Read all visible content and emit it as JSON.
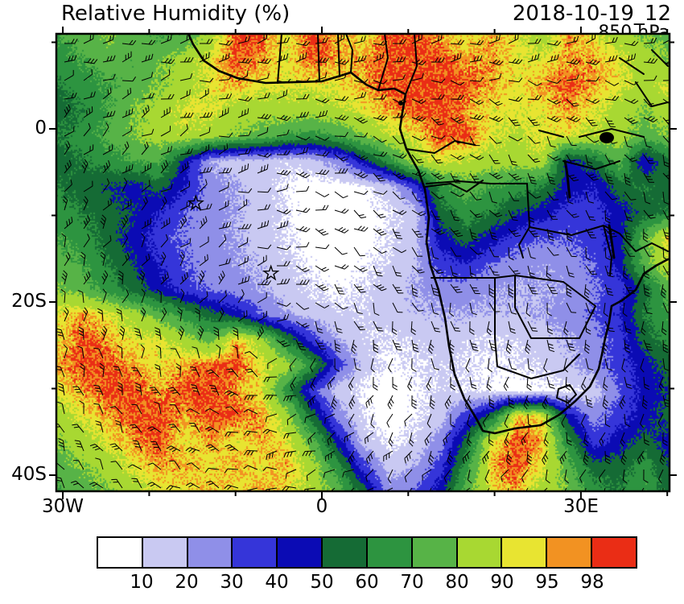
{
  "header": {
    "title": "Relative Humidity (%)",
    "datetime": "2018-10-19_12",
    "level": "850 hPa"
  },
  "axes": {
    "y_ticks": [
      {
        "label": "0",
        "lat": 0
      },
      {
        "label": "20S",
        "lat": -20
      },
      {
        "label": "40S",
        "lat": -40
      }
    ],
    "x_ticks": [
      {
        "label": "30W",
        "lon": -30
      },
      {
        "label": "0",
        "lon": 0
      },
      {
        "label": "30E",
        "lon": 30
      }
    ],
    "x_minor_lons": [
      -20,
      -10,
      10,
      20,
      40
    ],
    "y_minor_lats": [
      10,
      -10,
      -30
    ]
  },
  "colorbar": {
    "levels": [
      "10",
      "20",
      "30",
      "40",
      "50",
      "60",
      "70",
      "80",
      "90",
      "95",
      "98"
    ]
  },
  "chart_data": {
    "type": "heatmap",
    "title": "Relative Humidity (%)",
    "datetime": "2018-10-19_12",
    "pressure_level": "850 hPa",
    "units": "%",
    "lon_range": [
      -31,
      40
    ],
    "lat_range": [
      -42,
      11
    ],
    "levels": [
      10,
      20,
      30,
      40,
      50,
      60,
      70,
      80,
      90,
      95,
      98
    ],
    "palette": [
      "#ffffff",
      "#c9c9f2",
      "#8f8fe8",
      "#3535d9",
      "#0b0bb4",
      "#156b35",
      "#2d9440",
      "#57b347",
      "#a8d832",
      "#e8e431",
      "#f29222",
      "#ea2d15"
    ],
    "grid": {
      "ncols": 25,
      "nrows": 19,
      "values": [
        [
          70,
          75,
          80,
          75,
          70,
          72,
          85,
          99,
          99,
          92,
          99,
          96,
          92,
          99,
          99,
          96,
          92,
          96,
          92,
          85,
          96,
          92,
          85,
          80,
          75
        ],
        [
          65,
          70,
          75,
          72,
          78,
          85,
          92,
          99,
          96,
          92,
          99,
          96,
          96,
          99,
          99,
          99,
          96,
          96,
          92,
          92,
          96,
          96,
          92,
          85,
          80
        ],
        [
          60,
          65,
          70,
          75,
          80,
          85,
          92,
          96,
          92,
          92,
          92,
          92,
          96,
          99,
          99,
          99,
          99,
          96,
          92,
          96,
          99,
          96,
          92,
          85,
          92
        ],
        [
          55,
          60,
          70,
          80,
          85,
          92,
          92,
          85,
          85,
          85,
          85,
          88,
          92,
          96,
          99,
          99,
          96,
          92,
          92,
          92,
          96,
          92,
          85,
          80,
          85
        ],
        [
          60,
          65,
          72,
          80,
          85,
          88,
          85,
          80,
          75,
          70,
          65,
          70,
          80,
          88,
          92,
          99,
          99,
          92,
          88,
          92,
          92,
          88,
          85,
          75,
          80
        ],
        [
          55,
          60,
          65,
          70,
          72,
          45,
          20,
          15,
          15,
          12,
          15,
          25,
          45,
          65,
          85,
          92,
          88,
          85,
          85,
          88,
          45,
          55,
          75,
          40,
          60
        ],
        [
          60,
          55,
          50,
          45,
          55,
          40,
          25,
          20,
          15,
          8,
          5,
          5,
          8,
          15,
          35,
          65,
          75,
          70,
          65,
          60,
          45,
          40,
          55,
          60,
          55
        ],
        [
          65,
          60,
          55,
          50,
          40,
          30,
          25,
          20,
          15,
          10,
          5,
          5,
          5,
          10,
          15,
          55,
          65,
          60,
          50,
          45,
          35,
          35,
          45,
          55,
          60
        ],
        [
          70,
          65,
          55,
          45,
          35,
          28,
          25,
          20,
          15,
          10,
          5,
          5,
          5,
          10,
          15,
          45,
          55,
          45,
          35,
          30,
          30,
          35,
          45,
          75,
          96
        ],
        [
          75,
          70,
          60,
          50,
          40,
          30,
          25,
          22,
          18,
          12,
          8,
          5,
          8,
          12,
          18,
          35,
          40,
          30,
          25,
          22,
          25,
          30,
          45,
          75,
          92
        ],
        [
          80,
          75,
          65,
          55,
          45,
          35,
          28,
          25,
          20,
          15,
          10,
          8,
          10,
          15,
          20,
          25,
          25,
          22,
          20,
          20,
          22,
          28,
          35,
          55,
          75
        ],
        [
          92,
          96,
          92,
          85,
          75,
          65,
          55,
          45,
          30,
          20,
          15,
          12,
          12,
          15,
          18,
          20,
          20,
          18,
          18,
          20,
          25,
          30,
          40,
          60,
          70
        ],
        [
          92,
          99,
          96,
          92,
          92,
          85,
          75,
          96,
          85,
          60,
          35,
          20,
          12,
          10,
          12,
          15,
          12,
          10,
          12,
          15,
          20,
          25,
          35,
          55,
          65
        ],
        [
          96,
          99,
          99,
          96,
          92,
          96,
          99,
          99,
          92,
          85,
          65,
          35,
          15,
          8,
          10,
          12,
          10,
          8,
          10,
          12,
          18,
          25,
          35,
          45,
          55
        ],
        [
          92,
          96,
          99,
          99,
          96,
          99,
          99,
          96,
          92,
          65,
          35,
          15,
          8,
          5,
          8,
          12,
          10,
          8,
          5,
          8,
          8,
          15,
          30,
          45,
          50
        ],
        [
          85,
          92,
          96,
          99,
          99,
          96,
          99,
          99,
          96,
          85,
          55,
          25,
          10,
          5,
          8,
          15,
          35,
          55,
          96,
          92,
          45,
          25,
          35,
          45,
          55
        ],
        [
          80,
          85,
          92,
          96,
          99,
          92,
          96,
          92,
          96,
          92,
          75,
          45,
          15,
          8,
          12,
          25,
          55,
          92,
          99,
          96,
          65,
          35,
          45,
          55,
          45
        ],
        [
          75,
          80,
          85,
          92,
          96,
          96,
          92,
          96,
          92,
          96,
          85,
          65,
          35,
          15,
          20,
          35,
          65,
          96,
          99,
          92,
          75,
          55,
          55,
          65,
          50
        ],
        [
          70,
          75,
          80,
          85,
          92,
          92,
          96,
          92,
          96,
          92,
          88,
          75,
          55,
          25,
          30,
          45,
          75,
          92,
          96,
          85,
          80,
          65,
          60,
          70,
          55
        ]
      ]
    },
    "markers": [
      {
        "type": "star",
        "lon": -14.6,
        "lat": -8.6
      },
      {
        "type": "star",
        "lon": -5.9,
        "lat": -16.7
      }
    ],
    "overlays": [
      "wind-barbs",
      "coastlines",
      "country-borders",
      "lakes"
    ]
  }
}
